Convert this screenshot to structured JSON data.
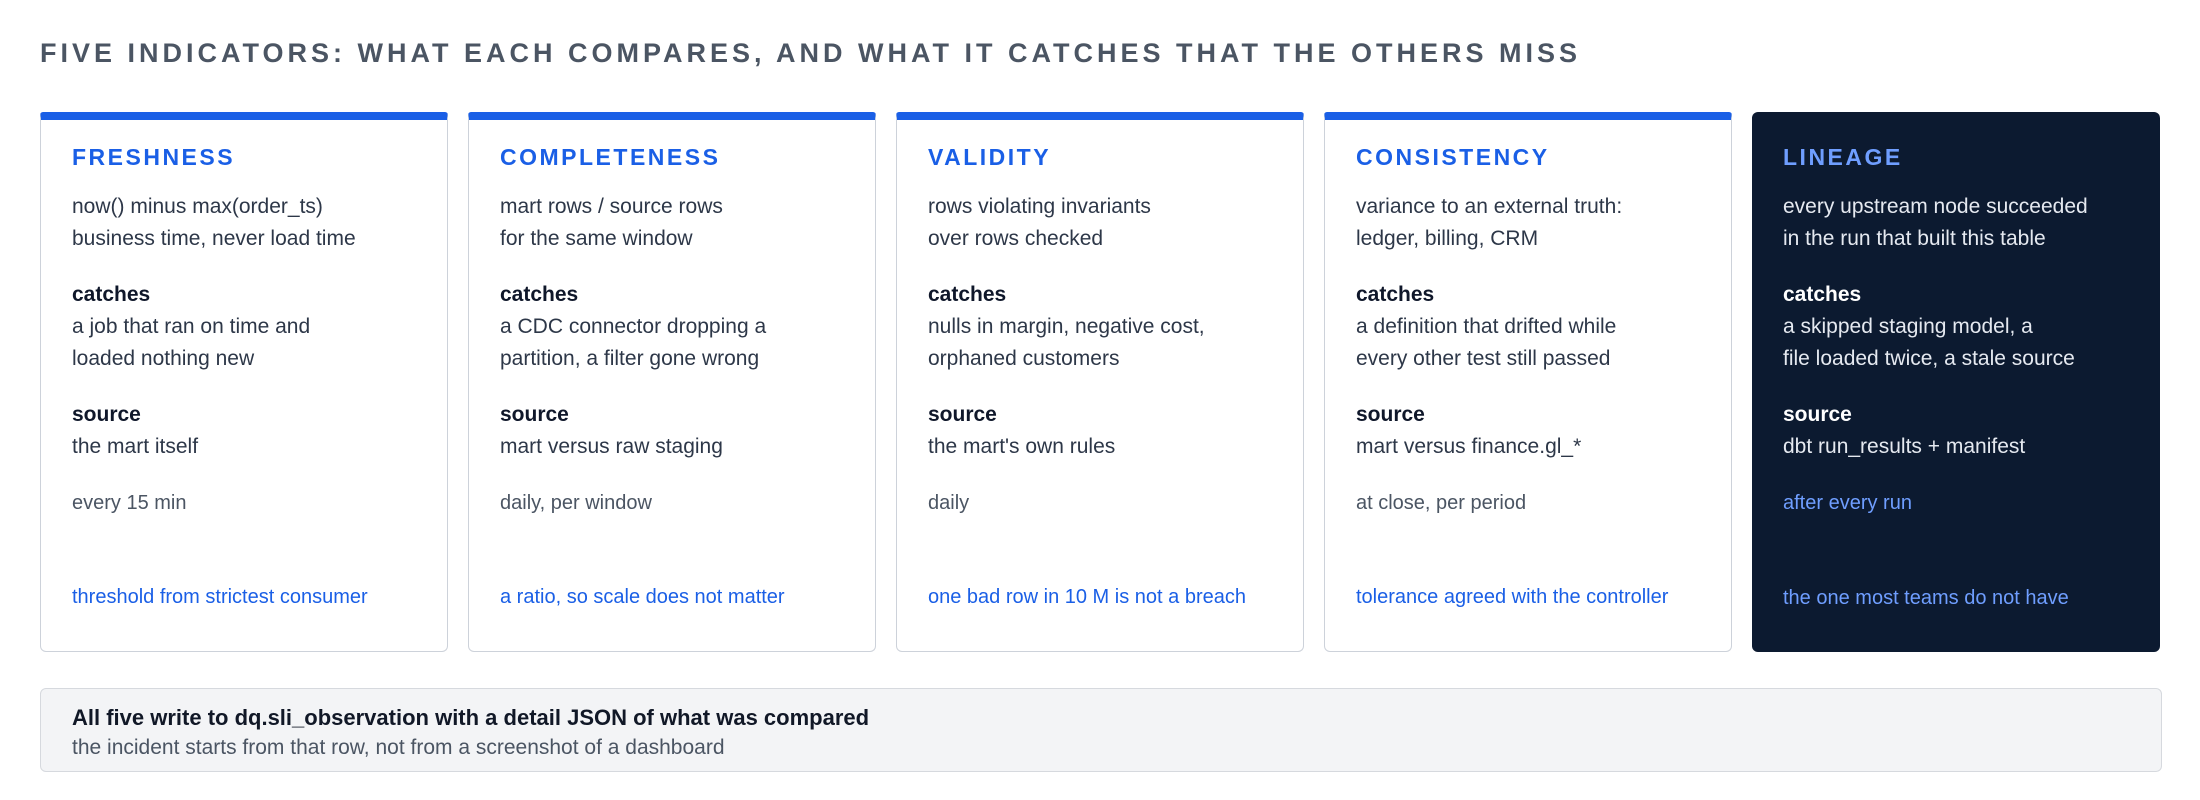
{
  "title": "FIVE INDICATORS: WHAT EACH COMPARES, AND WHAT IT CATCHES THAT THE OTHERS MISS",
  "labels": {
    "catches": "catches",
    "source": "source"
  },
  "colors": {
    "accent": "#1a5fe6",
    "dark_card_bg": "#0c1a30",
    "dark_card_accent": "#6f9eff",
    "footer_bg": "#f3f4f6"
  },
  "cards": [
    {
      "name": "FRESHNESS",
      "compare": [
        "now() minus max(order_ts)",
        "business time, never load time"
      ],
      "catches": [
        "a job that ran on time and",
        "loaded nothing new"
      ],
      "source": "the mart itself",
      "cadence": "every 15 min",
      "note": "threshold from strictest consumer"
    },
    {
      "name": "COMPLETENESS",
      "compare": [
        "mart rows / source rows",
        "for the same window"
      ],
      "catches": [
        "a CDC connector dropping a",
        "partition, a filter gone wrong"
      ],
      "source": "mart versus raw staging",
      "cadence": "daily, per window",
      "note": "a ratio, so scale does not matter"
    },
    {
      "name": "VALIDITY",
      "compare": [
        "rows violating invariants",
        "over rows checked"
      ],
      "catches": [
        "nulls in margin, negative cost,",
        "orphaned customers"
      ],
      "source": "the mart's own rules",
      "cadence": "daily",
      "note": "one bad row in 10 M is not a breach"
    },
    {
      "name": "CONSISTENCY",
      "compare": [
        "variance to an external truth:",
        "ledger, billing, CRM"
      ],
      "catches": [
        "a definition that drifted while",
        "every other test still passed"
      ],
      "source": "mart versus finance.gl_*",
      "cadence": "at close, per period",
      "note": "tolerance agreed with the controller"
    },
    {
      "name": "LINEAGE",
      "compare": [
        "every upstream node succeeded",
        "in the run that built this table"
      ],
      "catches": [
        "a skipped staging model, a",
        "file loaded twice, a stale source"
      ],
      "source": "dbt run_results + manifest",
      "cadence": "after every run",
      "note": "the one most teams do not have"
    }
  ],
  "footer": {
    "title": "All five write to dq.sli_observation with a detail JSON of what was compared",
    "subtitle": "the incident starts from that row, not from a screenshot of a dashboard"
  }
}
